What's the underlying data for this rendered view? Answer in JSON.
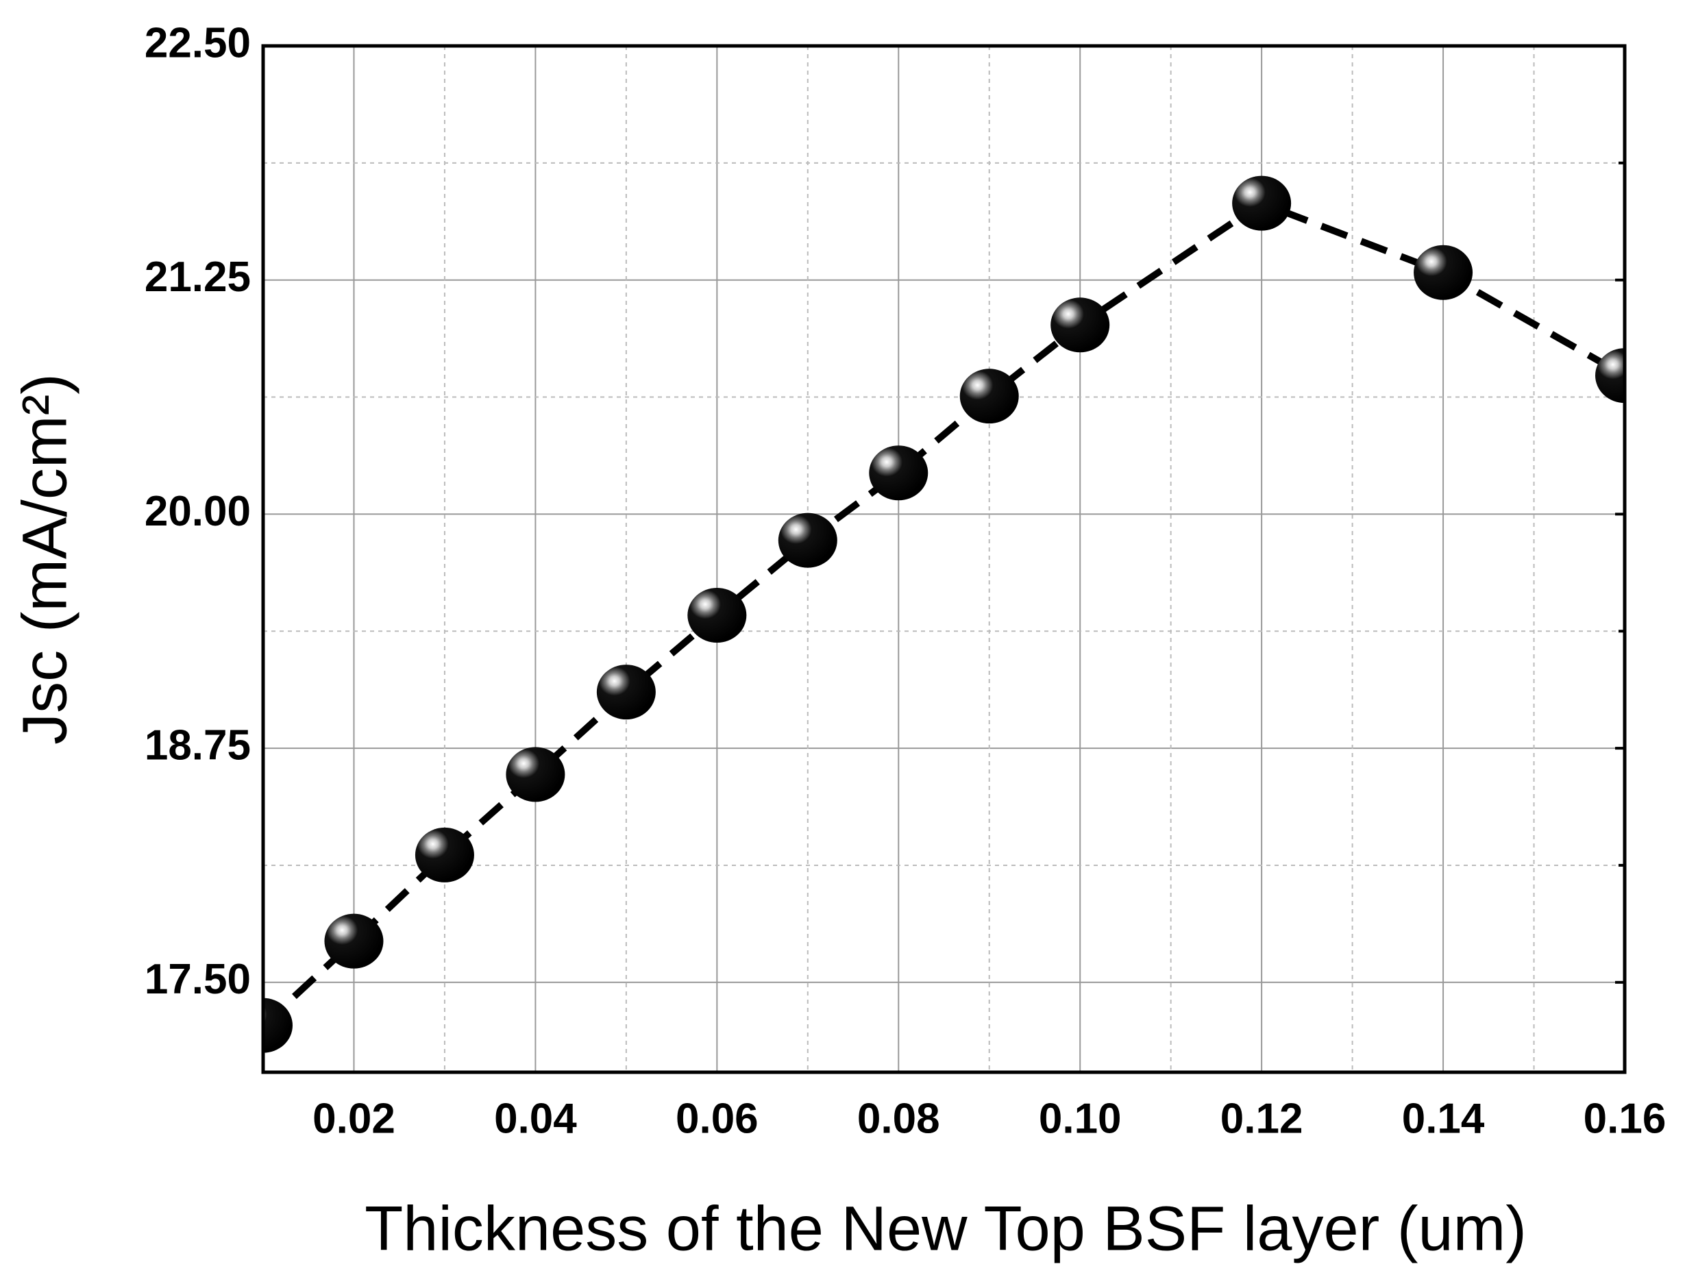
{
  "chart_data": {
    "type": "line",
    "x_label": "Thickness of the New Top BSF layer (um)",
    "y_label": "Jsc (mA/cm²)",
    "x": [
      0.01,
      0.02,
      0.03,
      0.04,
      0.05,
      0.06,
      0.07,
      0.08,
      0.09,
      0.1,
      0.12,
      0.14,
      0.16
    ],
    "values": [
      17.27,
      17.72,
      18.18,
      18.61,
      19.05,
      19.46,
      19.86,
      20.22,
      20.63,
      21.01,
      21.66,
      21.29,
      20.74
    ],
    "color": "#000000",
    "line_style": "dashed",
    "xlim": [
      0.01,
      0.16
    ],
    "ylim": [
      17.02,
      22.5
    ],
    "xticks": [
      0.02,
      0.04,
      0.06,
      0.08,
      {
        "value": 0.1,
        "label": "0.10"
      },
      0.12,
      0.14,
      0.16
    ],
    "yticks": [
      {
        "value": 17.5,
        "label": "17.50"
      },
      {
        "value": 18.75,
        "label": "18.75"
      },
      {
        "value": 20,
        "label": "20.00"
      },
      {
        "value": 21.25,
        "label": "21.25"
      },
      {
        "value": 22.5,
        "label": "22.50"
      }
    ],
    "minor_xticks": [
      0.03,
      0.05,
      0.07,
      0.09,
      0.11,
      0.13,
      0.15
    ],
    "minor_yticks": [
      18.125,
      19.375,
      20.625,
      21.875
    ],
    "grid": true
  }
}
